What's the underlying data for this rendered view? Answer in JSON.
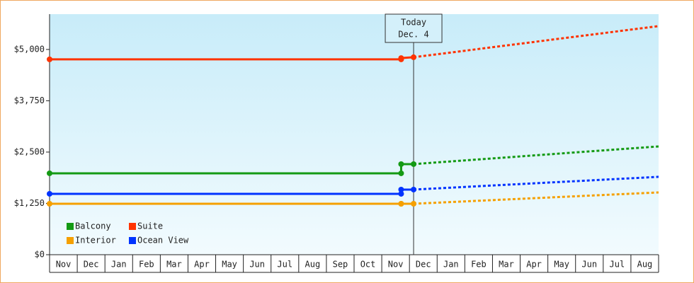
{
  "chart_data": {
    "type": "line",
    "categories": [
      "Nov",
      "Dec",
      "Jan",
      "Feb",
      "Mar",
      "Apr",
      "May",
      "Jun",
      "Jul",
      "Aug",
      "Sep",
      "Oct",
      "Nov",
      "Dec",
      "Jan",
      "Feb",
      "Mar",
      "Apr",
      "May",
      "Jun",
      "Jul",
      "Aug"
    ],
    "x": [
      0,
      12.7,
      12.7,
      13.15,
      22
    ],
    "xlim": [
      0,
      22
    ],
    "ylim": [
      0,
      5860
    ],
    "yticks": [
      {
        "value": 0,
        "label": "$0"
      },
      {
        "value": 1250,
        "label": "$1,250"
      },
      {
        "value": 2500,
        "label": "$2,500"
      },
      {
        "value": 3750,
        "label": "$3,750"
      },
      {
        "value": 5000,
        "label": "$5,000"
      }
    ],
    "today": {
      "label": "Today",
      "date": "Dec. 4",
      "x": 13.15
    },
    "legend": "lower left",
    "series": [
      {
        "name": "Balcony",
        "color": "#149a14",
        "values": [
          1983,
          1983,
          2207,
          2207,
          2638
        ]
      },
      {
        "name": "Suite",
        "color": "#ff3300",
        "values": [
          4759,
          4759,
          4790,
          4810,
          5569
        ]
      },
      {
        "name": "Interior",
        "color": "#f5a000",
        "values": [
          1241,
          1241,
          1241,
          1241,
          1517
        ]
      },
      {
        "name": "Ocean View",
        "color": "#0033ff",
        "values": [
          1483,
          1483,
          1586,
          1586,
          1897
        ]
      }
    ]
  }
}
